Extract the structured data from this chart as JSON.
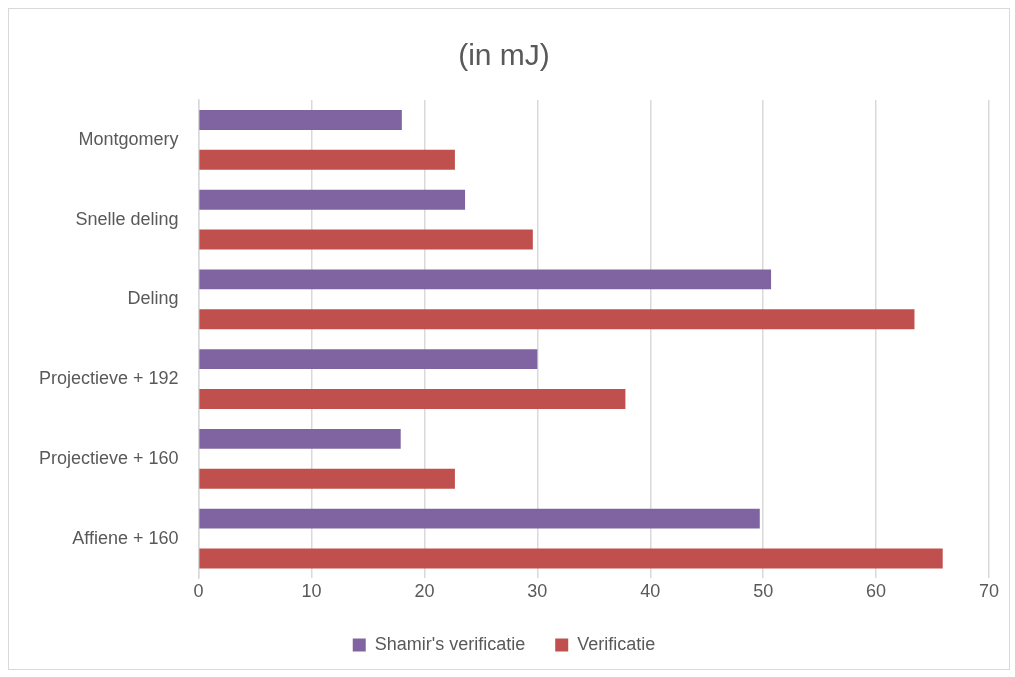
{
  "chart_data": {
    "type": "bar",
    "orientation": "horizontal",
    "title": "(in mJ)",
    "categories": [
      "Montgomery",
      "Snelle deling",
      "Deling",
      "Projectieve + 192",
      "Projectieve + 160",
      "Affiene + 160"
    ],
    "series": [
      {
        "name": "Shamir's verificatie",
        "color": "#8064a2",
        "values": [
          18.0,
          23.6,
          50.7,
          30.0,
          17.9,
          49.7
        ]
      },
      {
        "name": "Verificatie",
        "color": "#c0504d",
        "values": [
          22.7,
          29.6,
          63.4,
          37.8,
          22.7,
          65.9
        ]
      }
    ],
    "xlim": [
      0,
      70
    ],
    "xticks": [
      0,
      10,
      20,
      30,
      40,
      50,
      60,
      70
    ],
    "grid": "x",
    "legend": "bottom"
  }
}
